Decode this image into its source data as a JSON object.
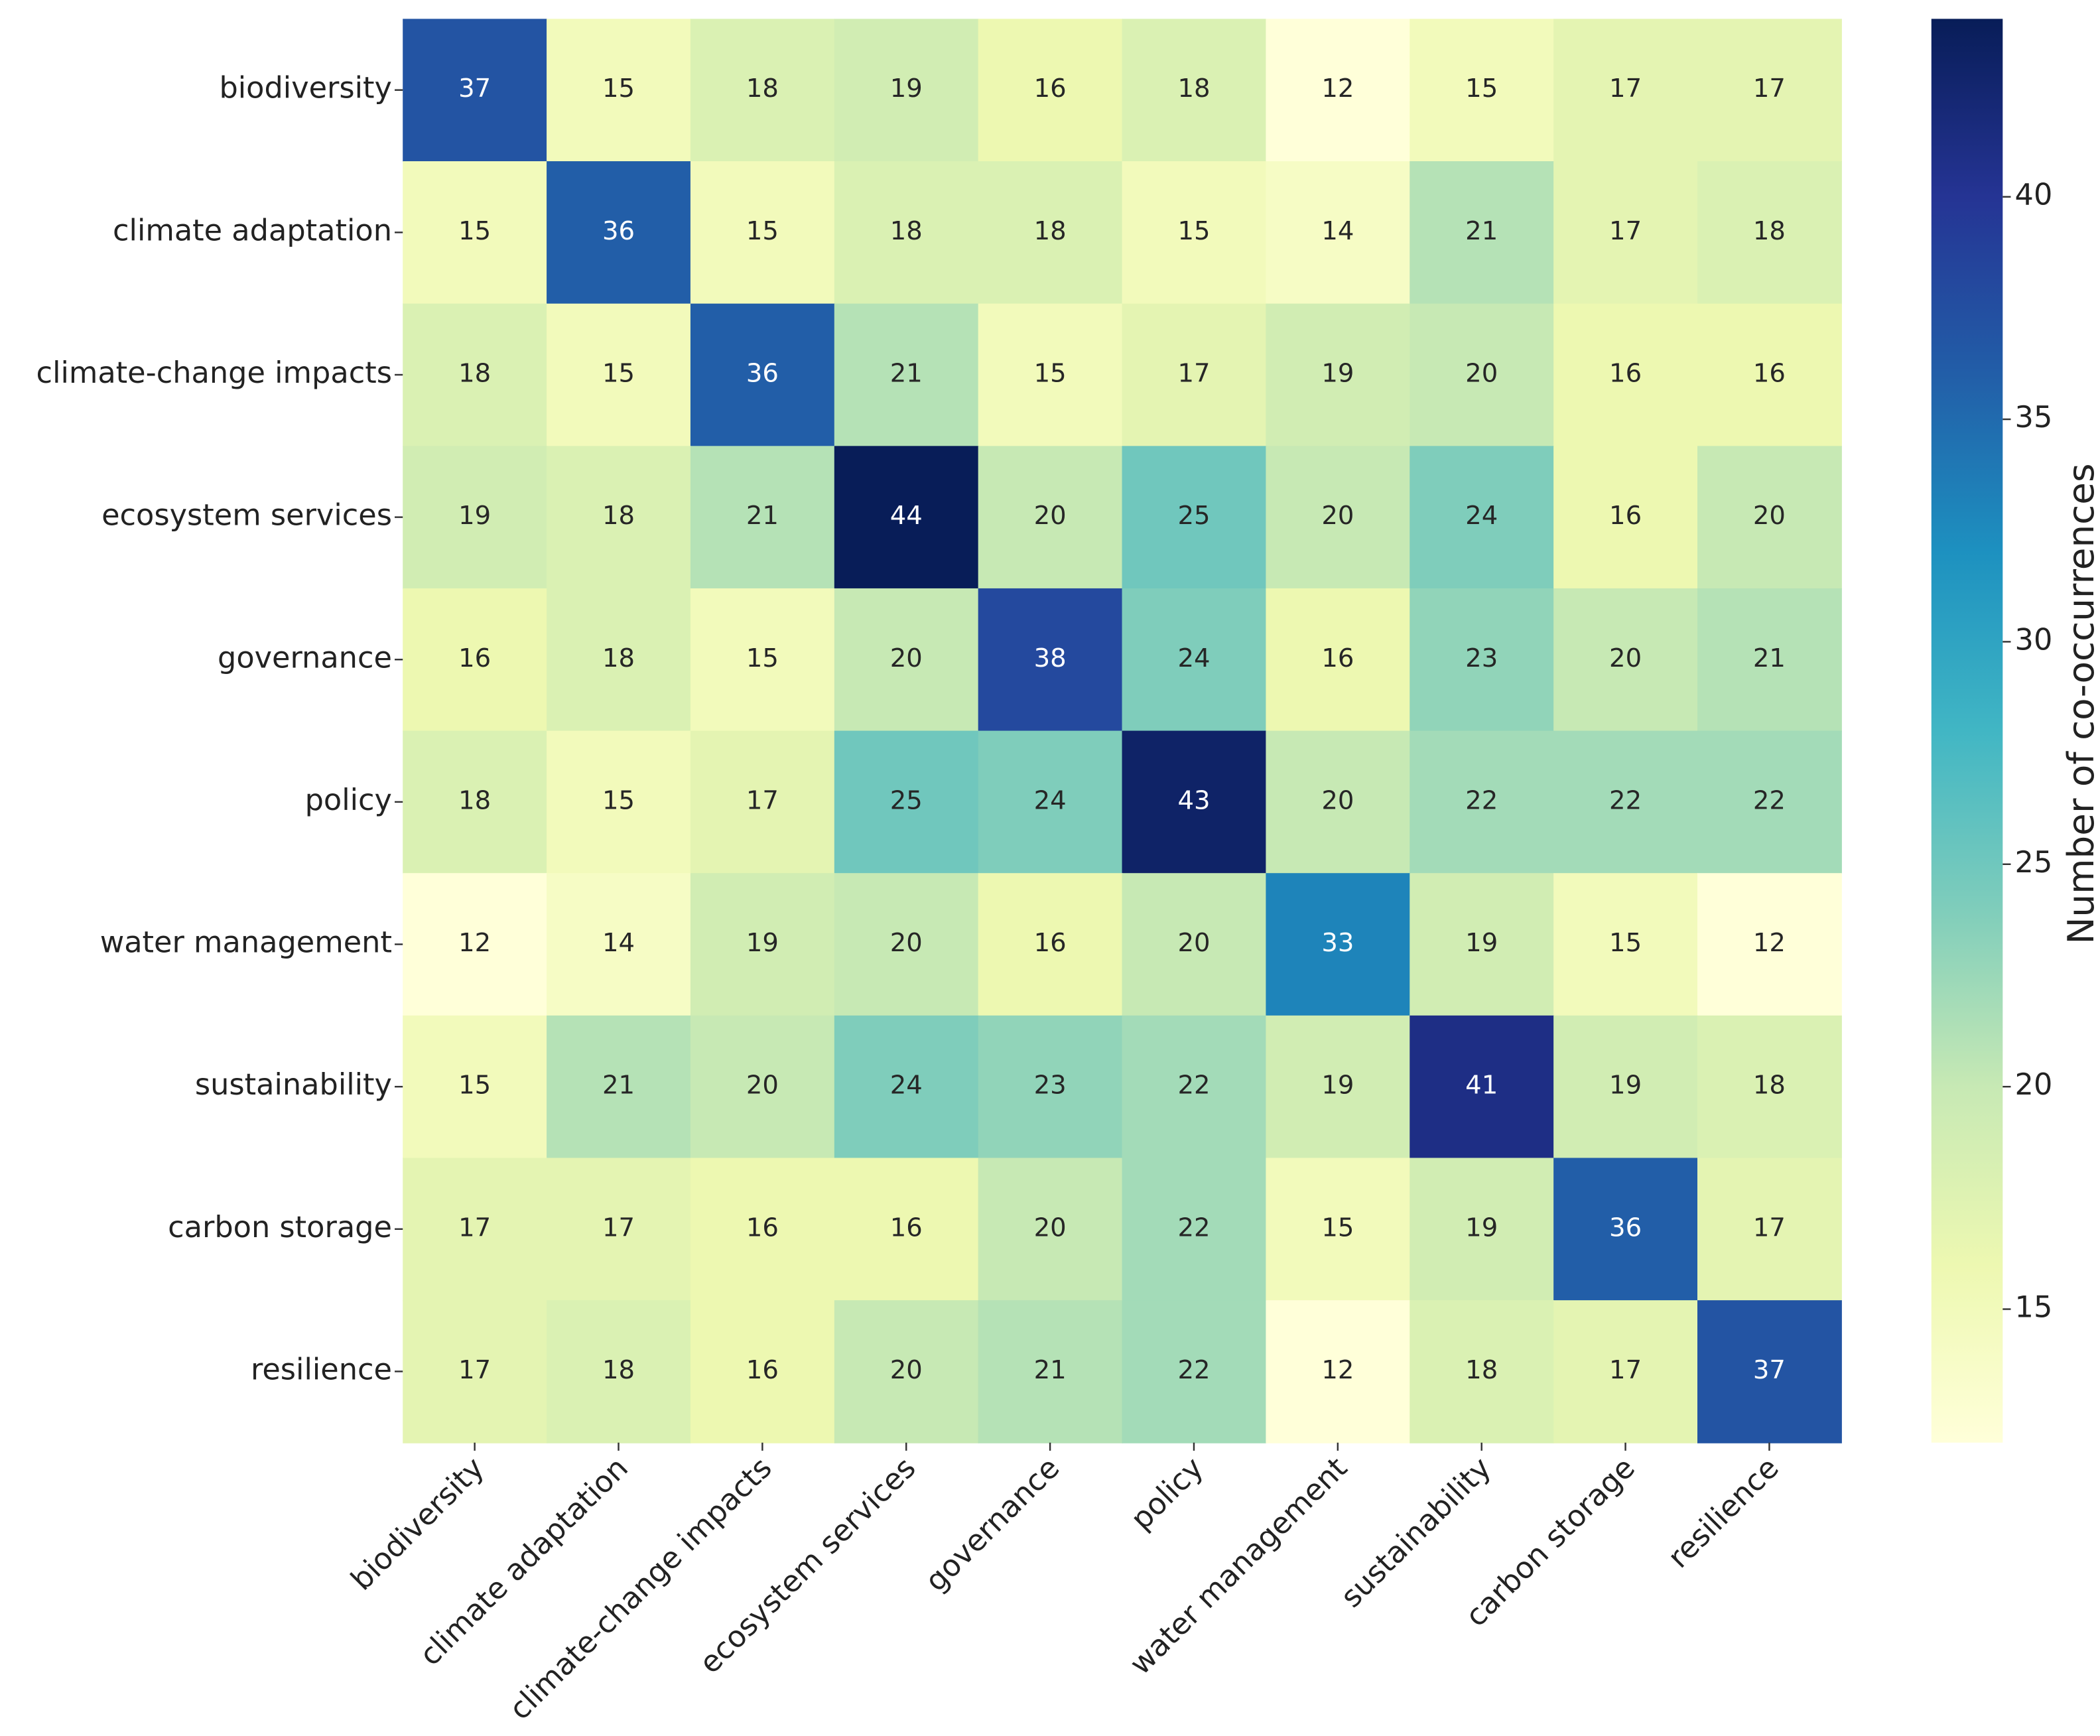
{
  "chart_data": {
    "type": "heatmap",
    "categories": [
      "biodiversity",
      "climate adaptation",
      "climate-change impacts",
      "ecosystem services",
      "governance",
      "policy",
      "water management",
      "sustainability",
      "carbon storage",
      "resilience"
    ],
    "y_categories": [
      "biodiversity",
      "climate adaptation",
      "climate-change impacts",
      "ecosystem services",
      "governance",
      "policy",
      "water management",
      "sustainability",
      "carbon storage",
      "resilience"
    ],
    "values": [
      [
        37,
        15,
        18,
        19,
        16,
        18,
        12,
        15,
        17,
        17
      ],
      [
        15,
        36,
        15,
        18,
        18,
        15,
        14,
        21,
        17,
        18
      ],
      [
        18,
        15,
        36,
        21,
        15,
        17,
        19,
        20,
        16,
        16
      ],
      [
        19,
        18,
        21,
        44,
        20,
        25,
        20,
        24,
        16,
        20
      ],
      [
        16,
        18,
        15,
        20,
        38,
        24,
        16,
        23,
        20,
        21
      ],
      [
        18,
        15,
        17,
        25,
        24,
        43,
        20,
        22,
        22,
        22
      ],
      [
        12,
        14,
        19,
        20,
        16,
        20,
        33,
        19,
        15,
        12
      ],
      [
        15,
        21,
        20,
        24,
        23,
        22,
        19,
        41,
        19,
        18
      ],
      [
        17,
        17,
        16,
        16,
        20,
        22,
        15,
        19,
        36,
        17
      ],
      [
        17,
        18,
        16,
        20,
        21,
        22,
        12,
        18,
        17,
        37
      ]
    ],
    "colormap": "YlGnBu",
    "colorbar_label": "Number of co-occurrences",
    "clim": [
      12,
      44
    ],
    "cticks": [
      15,
      20,
      25,
      30,
      35,
      40
    ]
  }
}
